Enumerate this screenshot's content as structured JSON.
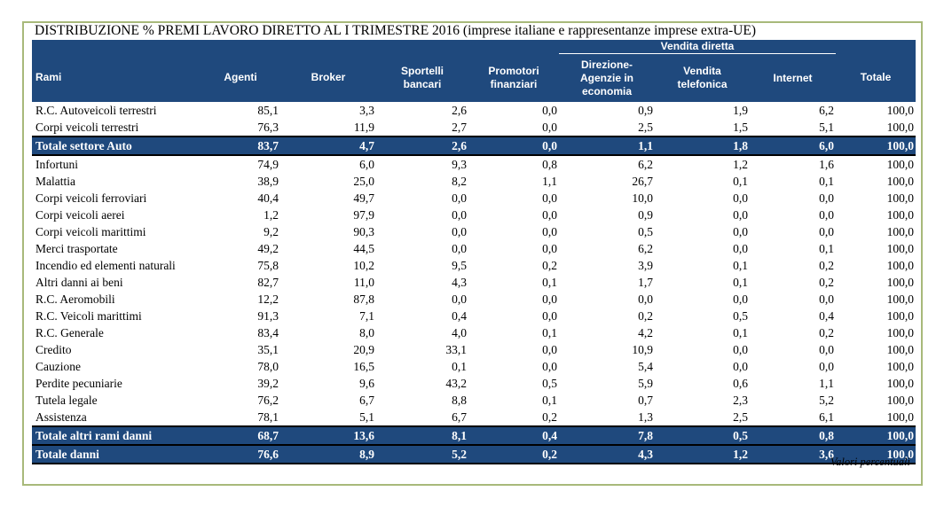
{
  "title": "DISTRIBUZIONE % PREMI LAVORO DIRETTO AL I TRIMESTRE 2016 (imprese italiane e rappresentanze imprese extra-UE)",
  "header": {
    "group_label": "Vendita diretta",
    "rami": "Rami",
    "agenti": "Agenti",
    "broker": "Broker",
    "sportelli_1": "Sportelli",
    "sportelli_2": "bancari",
    "promotori_1": "Promotori",
    "promotori_2": "finanziari",
    "direzione_1": "Direzione-",
    "direzione_2": "Agenzie in",
    "direzione_3": "economia",
    "telefonica_1": "Vendita",
    "telefonica_2": "telefonica",
    "internet": "Internet",
    "totale": "Totale"
  },
  "rows": [
    {
      "name": "R.C. Autoveicoli terrestri",
      "v": [
        "85,1",
        "3,3",
        "2,6",
        "0,0",
        "0,9",
        "1,9",
        "6,2",
        "100,0"
      ],
      "total": false
    },
    {
      "name": "Corpi veicoli terrestri",
      "v": [
        "76,3",
        "11,9",
        "2,7",
        "0,0",
        "2,5",
        "1,5",
        "5,1",
        "100,0"
      ],
      "total": false
    },
    {
      "name": "Totale settore Auto",
      "v": [
        "83,7",
        "4,7",
        "2,6",
        "0,0",
        "1,1",
        "1,8",
        "6,0",
        "100,0"
      ],
      "total": true
    },
    {
      "name": "Infortuni",
      "v": [
        "74,9",
        "6,0",
        "9,3",
        "0,8",
        "6,2",
        "1,2",
        "1,6",
        "100,0"
      ],
      "total": false
    },
    {
      "name": "Malattia",
      "v": [
        "38,9",
        "25,0",
        "8,2",
        "1,1",
        "26,7",
        "0,1",
        "0,1",
        "100,0"
      ],
      "total": false
    },
    {
      "name": "Corpi veicoli ferroviari",
      "v": [
        "40,4",
        "49,7",
        "0,0",
        "0,0",
        "10,0",
        "0,0",
        "0,0",
        "100,0"
      ],
      "total": false
    },
    {
      "name": "Corpi veicoli aerei",
      "v": [
        "1,2",
        "97,9",
        "0,0",
        "0,0",
        "0,9",
        "0,0",
        "0,0",
        "100,0"
      ],
      "total": false
    },
    {
      "name": "Corpi veicoli marittimi",
      "v": [
        "9,2",
        "90,3",
        "0,0",
        "0,0",
        "0,5",
        "0,0",
        "0,0",
        "100,0"
      ],
      "total": false
    },
    {
      "name": "Merci trasportate",
      "v": [
        "49,2",
        "44,5",
        "0,0",
        "0,0",
        "6,2",
        "0,0",
        "0,1",
        "100,0"
      ],
      "total": false
    },
    {
      "name": "Incendio ed elementi naturali",
      "v": [
        "75,8",
        "10,2",
        "9,5",
        "0,2",
        "3,9",
        "0,1",
        "0,2",
        "100,0"
      ],
      "total": false
    },
    {
      "name": "Altri danni ai beni",
      "v": [
        "82,7",
        "11,0",
        "4,3",
        "0,1",
        "1,7",
        "0,1",
        "0,2",
        "100,0"
      ],
      "total": false
    },
    {
      "name": "R.C. Aeromobili",
      "v": [
        "12,2",
        "87,8",
        "0,0",
        "0,0",
        "0,0",
        "0,0",
        "0,0",
        "100,0"
      ],
      "total": false
    },
    {
      "name": "R.C. Veicoli marittimi",
      "v": [
        "91,3",
        "7,1",
        "0,4",
        "0,0",
        "0,2",
        "0,5",
        "0,4",
        "100,0"
      ],
      "total": false
    },
    {
      "name": "R.C. Generale",
      "v": [
        "83,4",
        "8,0",
        "4,0",
        "0,1",
        "4,2",
        "0,1",
        "0,2",
        "100,0"
      ],
      "total": false
    },
    {
      "name": "Credito",
      "v": [
        "35,1",
        "20,9",
        "33,1",
        "0,0",
        "10,9",
        "0,0",
        "0,0",
        "100,0"
      ],
      "total": false
    },
    {
      "name": "Cauzione",
      "v": [
        "78,0",
        "16,5",
        "0,1",
        "0,0",
        "5,4",
        "0,0",
        "0,0",
        "100,0"
      ],
      "total": false
    },
    {
      "name": "Perdite pecuniarie",
      "v": [
        "39,2",
        "9,6",
        "43,2",
        "0,5",
        "5,9",
        "0,6",
        "1,1",
        "100,0"
      ],
      "total": false
    },
    {
      "name": "Tutela legale",
      "v": [
        "76,2",
        "6,7",
        "8,8",
        "0,1",
        "0,7",
        "2,3",
        "5,2",
        "100,0"
      ],
      "total": false
    },
    {
      "name": "Assistenza",
      "v": [
        "78,1",
        "5,1",
        "6,7",
        "0,2",
        "1,3",
        "2,5",
        "6,1",
        "100,0"
      ],
      "total": false
    },
    {
      "name": "Totale altri rami danni",
      "v": [
        "68,7",
        "13,6",
        "8,1",
        "0,4",
        "7,8",
        "0,5",
        "0,8",
        "100,0"
      ],
      "total": true
    },
    {
      "name": "Totale danni",
      "v": [
        "76,6",
        "8,9",
        "5,2",
        "0,2",
        "4,3",
        "1,2",
        "3,6",
        "100,0"
      ],
      "total": true
    }
  ],
  "note": "Valori percentuali",
  "colors": {
    "header_bg": "#1f497d",
    "frame": "#a8b97a"
  }
}
